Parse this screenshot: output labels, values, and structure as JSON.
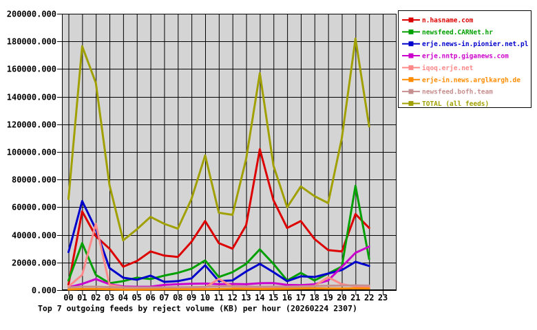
{
  "title": "Top 7 outgoing feeds by reject volume (KB) per hour (20260224 2307)",
  "chart_data": {
    "type": "line",
    "title": "Top 7 outgoing feeds by reject volume (KB) per hour (20260224 2307)",
    "xlabel": "",
    "ylabel": "",
    "ylim": [
      0,
      200000
    ],
    "y_tick_step": 20000,
    "y_tick_labels": [
      "0.000",
      "20000.000",
      "40000.000",
      "60000.000",
      "80000.000",
      "100000.000",
      "120000.000",
      "140000.000",
      "160000.000",
      "180000.000",
      "200000.000"
    ],
    "x_tick_labels": [
      "00",
      "01",
      "02",
      "03",
      "04",
      "05",
      "06",
      "07",
      "08",
      "09",
      "10",
      "11",
      "12",
      "13",
      "14",
      "15",
      "16",
      "17",
      "18",
      "19",
      "20",
      "21",
      "22",
      "23"
    ],
    "grid": true,
    "plot_background": "#d4d4d4",
    "grid_color": "#000000",
    "legend_position": "top-right",
    "series": [
      {
        "name": "n.hasname.com",
        "color": "#dd0000",
        "values": [
          4000,
          57000,
          39000,
          30000,
          17000,
          21000,
          28000,
          25000,
          24000,
          35000,
          50000,
          34000,
          30000,
          47000,
          102000,
          65000,
          45000,
          50000,
          37000,
          29000,
          28000,
          55000,
          45000
        ]
      },
      {
        "name": "newsfeed.CARNet.hr",
        "color": "#00a000",
        "values": [
          7000,
          34000,
          11000,
          5000,
          6500,
          9000,
          8000,
          10500,
          12500,
          15500,
          21500,
          9500,
          13000,
          19000,
          29500,
          19000,
          7000,
          12500,
          7000,
          12000,
          17000,
          75500,
          22500
        ]
      },
      {
        "name": "erje.news-in.pionier.net.pl",
        "color": "#0000cc",
        "values": [
          27500,
          64500,
          44000,
          16000,
          9000,
          7500,
          10500,
          6000,
          6500,
          8500,
          18000,
          6500,
          7000,
          13500,
          19000,
          13000,
          6500,
          10000,
          9500,
          12000,
          14500,
          20500,
          17500
        ]
      },
      {
        "name": "erje.nntp.giganews.com",
        "color": "#cc00cc",
        "values": [
          2000,
          4500,
          8000,
          4300,
          2600,
          2400,
          2500,
          3800,
          4300,
          4600,
          4800,
          4300,
          4500,
          4300,
          5000,
          5100,
          3800,
          3600,
          4200,
          7000,
          16800,
          27000,
          31500
        ]
      },
      {
        "name": "iqoq.erje.net",
        "color": "#ff8888",
        "values": [
          2600,
          11000,
          48000,
          3800,
          2100,
          1800,
          1700,
          1600,
          1700,
          1800,
          2000,
          8100,
          2500,
          2000,
          2000,
          2200,
          2000,
          2200,
          3000,
          9300,
          4300,
          2600,
          2500
        ]
      },
      {
        "name": "erje-in.news.arglkargh.de",
        "color": "#ff8c00",
        "values": [
          500,
          800,
          800,
          600,
          400,
          400,
          500,
          600,
          700,
          600,
          600,
          800,
          1000,
          900,
          800,
          900,
          1000,
          1200,
          1300,
          1200,
          1200,
          1300,
          1200
        ]
      },
      {
        "name": "newsfeed.bofh.team",
        "color": "#c79090",
        "values": [
          2000,
          2500,
          2500,
          2200,
          2000,
          1900,
          1900,
          2000,
          2100,
          2200,
          2400,
          2600,
          2800,
          2600,
          2500,
          2600,
          2500,
          2700,
          3000,
          3200,
          3300,
          3400,
          3300
        ]
      },
      {
        "name": "TOTAL (all feeds)",
        "color": "#a0a000",
        "values": [
          66000,
          176500,
          150000,
          76000,
          36000,
          44000,
          53000,
          48000,
          44500,
          66000,
          97500,
          56000,
          54500,
          95000,
          157000,
          90000,
          60000,
          75000,
          68000,
          63000,
          110000,
          182000,
          118500
        ]
      }
    ]
  }
}
